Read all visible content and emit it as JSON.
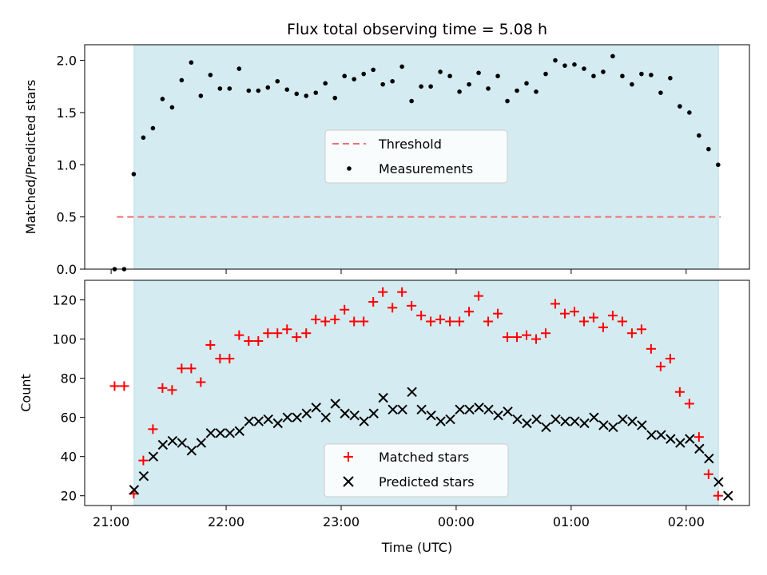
{
  "chart_data": {
    "type": "scatter",
    "title": "Flux total observing time = 5.08 h",
    "xlabel": "Time (UTC)",
    "x_tick_labels": [
      "21:00",
      "22:00",
      "23:00",
      "00:00",
      "01:00",
      "02:00"
    ],
    "x_ticks_hours": [
      21,
      22,
      23,
      24,
      25,
      26
    ],
    "xlim_hours": [
      20.77,
      26.55
    ],
    "observing_window_hours": [
      21.2,
      26.28
    ],
    "colors": {
      "shade": "#d4ebf1",
      "threshold": "#f07070",
      "measurements": "#000000",
      "matched": "#ff0000",
      "predicted": "#000000"
    },
    "top_panel": {
      "ylabel": "Matched/Predicted stars",
      "ylim": [
        0,
        2.15
      ],
      "yticks": [
        0.0,
        0.5,
        1.0,
        1.5,
        2.0
      ],
      "ytick_labels": [
        "0.0",
        "0.5",
        "1.0",
        "1.5",
        "2.0"
      ],
      "threshold": {
        "name": "Threshold",
        "y": 0.5,
        "x_range_hours": [
          21.05,
          26.3
        ]
      },
      "measurements": {
        "name": "Measurements",
        "x_start_hours": 21.03,
        "x_step_hours": 0.0833,
        "y": [
          0.0,
          0.0,
          0.91,
          1.26,
          1.35,
          1.63,
          1.55,
          1.81,
          1.98,
          1.66,
          1.86,
          1.73,
          1.73,
          1.92,
          1.71,
          1.71,
          1.74,
          1.8,
          1.72,
          1.68,
          1.66,
          1.69,
          1.78,
          1.64,
          1.85,
          1.82,
          1.87,
          1.91,
          1.77,
          1.8,
          1.94,
          1.61,
          1.75,
          1.75,
          1.89,
          1.85,
          1.7,
          1.77,
          1.88,
          1.73,
          1.85,
          1.61,
          1.71,
          1.78,
          1.7,
          1.87,
          2.0,
          1.95,
          1.96,
          1.92,
          1.85,
          1.89,
          2.04,
          1.85,
          1.77,
          1.87,
          1.86,
          1.69,
          1.83,
          1.56,
          1.5,
          1.28,
          1.15,
          1.0
        ]
      },
      "legend": {
        "position": "center"
      }
    },
    "bottom_panel": {
      "ylabel": "Count",
      "ylim": [
        15,
        130
      ],
      "yticks": [
        20,
        40,
        60,
        80,
        100,
        120
      ],
      "ytick_labels": [
        "20",
        "40",
        "60",
        "80",
        "100",
        "120"
      ],
      "matched": {
        "name": "Matched stars",
        "x_start_hours": 21.03,
        "x_step_hours": 0.0833,
        "y": [
          76,
          76,
          21,
          38,
          54,
          75,
          74,
          85,
          85,
          78,
          97,
          90,
          90,
          102,
          99,
          99,
          103,
          103,
          105,
          101,
          103,
          110,
          109,
          110,
          115,
          109,
          109,
          119,
          124,
          116,
          124,
          117,
          112,
          109,
          110,
          109,
          109,
          114,
          122,
          109,
          113,
          101,
          101,
          102,
          100,
          103,
          118,
          113,
          114,
          109,
          111,
          106,
          112,
          109,
          103,
          105,
          95,
          86,
          90,
          73,
          67,
          50,
          31,
          20
        ]
      },
      "predicted": {
        "name": "Predicted stars",
        "x_start_hours": 21.2,
        "x_step_hours": 0.0833,
        "y": [
          23,
          30,
          40,
          46,
          48,
          47,
          43,
          47,
          52,
          52,
          52,
          53,
          58,
          58,
          59,
          57,
          60,
          60,
          62,
          65,
          60,
          67,
          62,
          61,
          58,
          62,
          70,
          64,
          64,
          73,
          64,
          61,
          58,
          59,
          64,
          64,
          65,
          64,
          61,
          63,
          59,
          57,
          59,
          55,
          59,
          58,
          58,
          57,
          60,
          56,
          55,
          59,
          58,
          56,
          51,
          51,
          49,
          47,
          49,
          44,
          39,
          27,
          20
        ]
      },
      "legend": {
        "position": "lower center"
      }
    }
  }
}
